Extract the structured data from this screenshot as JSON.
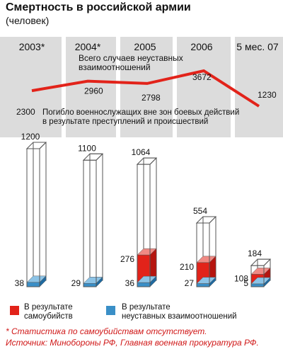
{
  "header": {
    "title": "Смертность в российской армии",
    "subtitle": "(человек)"
  },
  "chart_data": [
    {
      "type": "line",
      "title": "Всего случаев неуставных взаимоотношений",
      "categories": [
        "2003*",
        "2004*",
        "2005",
        "2006",
        "5 мес. 07"
      ],
      "values": [
        2300,
        2960,
        2798,
        3672,
        1230
      ],
      "value_labels": [
        "2300",
        "2960",
        "2798",
        "3672",
        "1230"
      ],
      "color": "#e2231a"
    },
    {
      "type": "bar",
      "title": "Погибло военнослужащих вне зон боевых действий в результате преступлений и происшествий",
      "categories": [
        "2003*",
        "2004*",
        "2005",
        "2006",
        "5 мес. 07"
      ],
      "totals": [
        1200,
        1100,
        1064,
        554,
        184
      ],
      "total_labels": [
        "1200",
        "1100",
        "1064",
        "554",
        "184"
      ],
      "series": [
        {
          "name": "В результате самоубийств",
          "values": [
            null,
            null,
            276,
            210,
            108
          ],
          "labels": [
            "",
            "",
            "276",
            "210",
            "108"
          ],
          "color": "#e2231a"
        },
        {
          "name": "В результате неуставных взаимоотношений",
          "values": [
            38,
            29,
            36,
            27,
            5
          ],
          "labels": [
            "38",
            "29",
            "36",
            "27",
            "5"
          ],
          "color": "#3a8fc7"
        }
      ]
    }
  ],
  "legend": {
    "suicide": "В результате\nсамоубийств",
    "hazing": "В результате\nнеуставных взаимоотношений"
  },
  "footnotes": {
    "note": "* Статистика по самоубийствам отсутствует.",
    "source": "Источник: Минобороны РФ, Главная военная прокуратура РФ."
  }
}
